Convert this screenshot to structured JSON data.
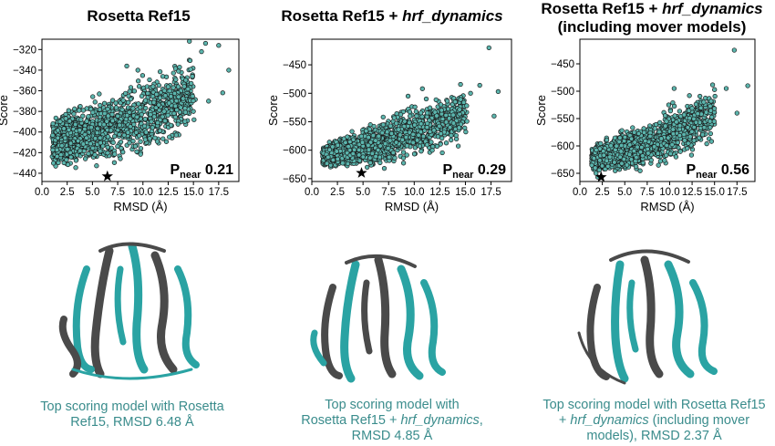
{
  "colors": {
    "point_fill": "#5bb5ad",
    "point_stroke": "#1a1a1a",
    "caption": "#3a8c8c",
    "helix_teal": "#2aa3a3",
    "helix_gray": "#4a4a4a"
  },
  "chart_data": [
    {
      "type": "scatter",
      "title": "Rosetta Ref15",
      "xlabel": "RMSD (Å)",
      "ylabel": "Score",
      "xlim": [
        0,
        19.5
      ],
      "ylim": [
        -448,
        -310
      ],
      "xticks": [
        "0.0",
        "2.5",
        "5.0",
        "7.5",
        "10.0",
        "12.5",
        "15.0",
        "17.5"
      ],
      "yticks": [
        "-320",
        "-340",
        "-360",
        "-380",
        "-400",
        "-420",
        "-440"
      ],
      "xtick_values": [
        0,
        2.5,
        5,
        7.5,
        10,
        12.5,
        15,
        17.5
      ],
      "ytick_values": [
        -320,
        -340,
        -360,
        -380,
        -400,
        -420,
        -440
      ],
      "pnear_label": "P",
      "pnear_sub": "near",
      "pnear_value": "0.21",
      "best_model": {
        "rmsd": 6.48,
        "score": -443
      },
      "cloud": {
        "xmin": 1.0,
        "xmax": 18.5,
        "ybottom": -435,
        "ytop_start": -385,
        "ytop_end": -318
      },
      "sample_points": [
        [
          14.6,
          -312
        ],
        [
          16.2,
          -314
        ],
        [
          17.5,
          -316
        ],
        [
          15.8,
          -322
        ],
        [
          18.5,
          -340
        ],
        [
          17.9,
          -362
        ],
        [
          16.5,
          -370
        ],
        [
          13.3,
          -403
        ],
        [
          12.1,
          -380
        ],
        [
          11.0,
          -356
        ],
        [
          9.5,
          -340
        ],
        [
          8.4,
          -336
        ]
      ]
    },
    {
      "type": "scatter",
      "title": "Rosetta Ref15 + hrf_dynamics",
      "xlabel": "RMSD (Å)",
      "ylabel": "Score",
      "xlim": [
        0,
        19.5
      ],
      "ylim": [
        -655,
        -405
      ],
      "xticks": [
        "0.0",
        "2.5",
        "5.0",
        "7.5",
        "10.0",
        "12.5",
        "15.0",
        "17.5"
      ],
      "yticks": [
        "-450",
        "-500",
        "-550",
        "-600",
        "-650"
      ],
      "xtick_values": [
        0,
        2.5,
        5,
        7.5,
        10,
        12.5,
        15,
        17.5
      ],
      "ytick_values": [
        -450,
        -500,
        -550,
        -600,
        -650
      ],
      "pnear_label": "P",
      "pnear_sub": "near",
      "pnear_value": "0.29",
      "best_model": {
        "rmsd": 4.85,
        "score": -640
      },
      "cloud": {
        "xmin": 1.0,
        "xmax": 18.5,
        "ybottom": -632,
        "ytop_start": -590,
        "ytop_end": -475
      },
      "sample_points": [
        [
          17.3,
          -420
        ],
        [
          16.4,
          -486
        ],
        [
          18.2,
          -497
        ],
        [
          15.5,
          -500
        ],
        [
          14.0,
          -515
        ],
        [
          12.6,
          -520
        ],
        [
          10.8,
          -492
        ],
        [
          9.4,
          -505
        ],
        [
          17.8,
          -540
        ],
        [
          13.5,
          -560
        ]
      ]
    },
    {
      "type": "scatter",
      "title": "Rosetta Ref15 + hrf_dynamics (including mover models)",
      "xlabel": "RMSD (Å)",
      "ylabel": "Score",
      "xlim": [
        0,
        19.5
      ],
      "ylim": [
        -665,
        -405
      ],
      "xticks": [
        "0.0",
        "2.5",
        "5.0",
        "7.5",
        "10.0",
        "12.5",
        "15.0",
        "17.5"
      ],
      "yticks": [
        "-450",
        "-500",
        "-550",
        "-600",
        "-650"
      ],
      "xtick_values": [
        0,
        2.5,
        5,
        7.5,
        10,
        12.5,
        15,
        17.5
      ],
      "ytick_values": [
        -450,
        -500,
        -550,
        -600,
        -650
      ],
      "pnear_label": "P",
      "pnear_sub": "near",
      "pnear_value": "0.56",
      "best_model": {
        "rmsd": 2.37,
        "score": -657
      },
      "cloud": {
        "xmin": 1.3,
        "xmax": 18.5,
        "ybottom": -648,
        "ytop_start": -600,
        "ytop_end": -480
      },
      "sample_points": [
        [
          17.2,
          -425
        ],
        [
          18.7,
          -490
        ],
        [
          16.3,
          -495
        ],
        [
          15.0,
          -497
        ],
        [
          13.8,
          -520
        ],
        [
          12.2,
          -508
        ],
        [
          10.5,
          -495
        ],
        [
          17.5,
          -540
        ],
        [
          14.5,
          -555
        ],
        [
          1.8,
          -650
        ],
        [
          2.0,
          -657
        ]
      ]
    }
  ],
  "captions": [
    {
      "line1": "Top scoring model with Rosetta",
      "line2": "Ref15, RMSD 6.48 Å"
    },
    {
      "line1": "Top scoring model with",
      "line2a": "Rosetta Ref15 + ",
      "line2b": "hrf_dynamics",
      "line2c": ",",
      "line3": "RMSD 4.85 Å"
    },
    {
      "line1": "Top scoring model with Rosetta Ref15",
      "line2a": "+ ",
      "line2b": "hrf_dynamics",
      "line2c": " (including mover",
      "line3": "models), RMSD 2.37 Å"
    }
  ],
  "titles": {
    "p1": "Rosetta Ref15",
    "p2a": "Rosetta Ref15 + ",
    "p2b": "hrf_dynamics",
    "p3a": "Rosetta Ref15 + ",
    "p3b": "hrf_dynamics",
    "p3c": "(including mover models)"
  }
}
